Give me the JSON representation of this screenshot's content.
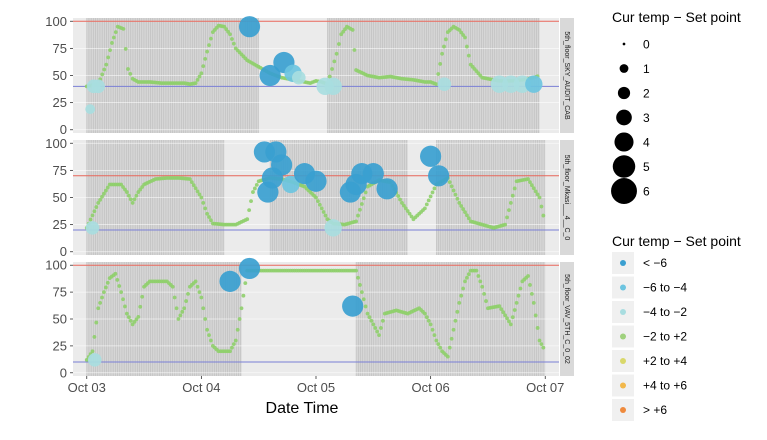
{
  "chart_data": {
    "type": "scatter",
    "xlabel": "Date Time",
    "ylabel": "",
    "x_ticks": [
      "Oct 03",
      "Oct 04",
      "Oct 05",
      "Oct 06",
      "Oct 07"
    ],
    "xlim": [
      -0.12,
      4.12
    ],
    "ylim": [
      -3,
      103
    ],
    "y_ticks": [
      0,
      25,
      50,
      75,
      100
    ],
    "grid": true,
    "legend_position": "right",
    "legends": [
      {
        "title": "Cur temp − Set point",
        "type": "size",
        "labels": [
          "0",
          "1",
          "2",
          "3",
          "4",
          "5",
          "6"
        ]
      },
      {
        "title": "Cur temp − Set point",
        "type": "color",
        "labels": [
          "< −6",
          "−6 to −4",
          "−4 to −2",
          "−2 to +2",
          "+2 to +4",
          "+4 to +6",
          "> +6"
        ],
        "colors": [
          "#3a9fd0",
          "#6cc4e0",
          "#a8dde0",
          "#9fd17d",
          "#d9d86a",
          "#f2b84b",
          "#ef8a3c"
        ]
      }
    ],
    "panels": [
      {
        "strip": "5th_floor_SKY_AUDIT_CAB",
        "upper_limit": 100,
        "lower_limit": 40,
        "occupied": [
          [
            0.0,
            1.5
          ],
          [
            2.1,
            3.95
          ]
        ],
        "trace": [
          [
            0.0,
            40
          ],
          [
            0.1,
            42
          ],
          [
            0.17,
            60
          ],
          [
            0.22,
            80
          ],
          [
            0.27,
            95
          ],
          [
            0.32,
            93
          ],
          [
            0.36,
            56
          ],
          [
            0.4,
            47
          ],
          [
            0.45,
            44
          ],
          [
            0.55,
            44
          ],
          [
            0.65,
            43
          ],
          [
            0.75,
            43
          ],
          [
            0.85,
            43
          ],
          [
            0.9,
            42
          ],
          [
            0.95,
            43
          ],
          [
            1.0,
            52
          ],
          [
            1.05,
            72
          ],
          [
            1.1,
            90
          ],
          [
            1.15,
            96
          ],
          [
            1.2,
            95
          ],
          [
            1.25,
            88
          ],
          [
            1.3,
            75
          ],
          [
            1.4,
            64
          ],
          [
            1.5,
            58
          ],
          [
            1.6,
            52
          ],
          [
            1.7,
            48
          ],
          [
            1.8,
            46
          ],
          [
            1.9,
            44
          ],
          [
            1.95,
            43
          ],
          [
            2.0,
            45
          ],
          [
            2.05,
            44
          ],
          [
            2.1,
            42
          ],
          [
            2.18,
            70
          ],
          [
            2.22,
            88
          ],
          [
            2.27,
            95
          ],
          [
            2.32,
            92
          ],
          [
            2.35,
            55
          ],
          [
            2.45,
            50
          ],
          [
            2.55,
            48
          ],
          [
            2.65,
            49
          ],
          [
            2.75,
            47
          ],
          [
            2.85,
            46
          ],
          [
            2.95,
            44
          ],
          [
            3.0,
            44
          ],
          [
            3.05,
            42
          ],
          [
            3.1,
            70
          ],
          [
            3.15,
            90
          ],
          [
            3.2,
            95
          ],
          [
            3.25,
            92
          ],
          [
            3.3,
            85
          ],
          [
            3.35,
            60
          ],
          [
            3.45,
            48
          ],
          [
            3.55,
            46
          ],
          [
            3.6,
            45
          ],
          [
            3.7,
            45
          ],
          [
            3.8,
            46
          ],
          [
            3.9,
            48
          ],
          [
            3.95,
            50
          ]
        ],
        "bubbles": [
          {
            "x": 0.03,
            "y": 19,
            "size": 1,
            "bin": "−4 to −2"
          },
          {
            "x": 0.06,
            "y": 40,
            "size": 2,
            "bin": "−4 to −2"
          },
          {
            "x": 0.1,
            "y": 40,
            "size": 2,
            "bin": "−4 to −2"
          },
          {
            "x": 1.42,
            "y": 95,
            "size": 4,
            "bin": "< −6"
          },
          {
            "x": 1.6,
            "y": 50,
            "size": 4,
            "bin": "< −6"
          },
          {
            "x": 1.72,
            "y": 62,
            "size": 4,
            "bin": "< −6"
          },
          {
            "x": 1.8,
            "y": 52,
            "size": 3,
            "bin": "−6 to −4"
          },
          {
            "x": 1.85,
            "y": 48,
            "size": 2,
            "bin": "−4 to −2"
          },
          {
            "x": 2.08,
            "y": 40,
            "size": 3,
            "bin": "−4 to −2"
          },
          {
            "x": 2.15,
            "y": 40,
            "size": 3,
            "bin": "−4 to −2"
          },
          {
            "x": 3.12,
            "y": 42,
            "size": 2,
            "bin": "−4 to −2"
          },
          {
            "x": 3.6,
            "y": 42,
            "size": 3,
            "bin": "−4 to −2"
          },
          {
            "x": 3.7,
            "y": 42,
            "size": 3,
            "bin": "−4 to −2"
          },
          {
            "x": 3.8,
            "y": 42,
            "size": 3,
            "bin": "−4 to −2"
          },
          {
            "x": 3.9,
            "y": 42,
            "size": 3,
            "bin": "−6 to −4"
          }
        ]
      },
      {
        "strip": "5th_floor_Mkasi___4__C_0",
        "upper_limit": 70,
        "lower_limit": 20,
        "occupied": [
          [
            0.0,
            1.2
          ],
          [
            1.6,
            2.8
          ],
          [
            3.05,
            4.0
          ]
        ],
        "trace": [
          [
            0.0,
            22
          ],
          [
            0.1,
            45
          ],
          [
            0.2,
            62
          ],
          [
            0.3,
            62
          ],
          [
            0.35,
            55
          ],
          [
            0.4,
            45
          ],
          [
            0.45,
            55
          ],
          [
            0.5,
            62
          ],
          [
            0.6,
            67
          ],
          [
            0.7,
            68
          ],
          [
            0.8,
            68
          ],
          [
            0.9,
            67
          ],
          [
            1.0,
            50
          ],
          [
            1.05,
            35
          ],
          [
            1.1,
            26
          ],
          [
            1.2,
            25
          ],
          [
            1.3,
            25
          ],
          [
            1.4,
            30
          ],
          [
            1.45,
            55
          ],
          [
            1.5,
            65
          ],
          [
            1.6,
            68
          ],
          [
            1.7,
            67
          ],
          [
            1.8,
            64
          ],
          [
            1.9,
            60
          ],
          [
            2.0,
            50
          ],
          [
            2.05,
            40
          ],
          [
            2.1,
            30
          ],
          [
            2.15,
            26
          ],
          [
            2.25,
            25
          ],
          [
            2.35,
            28
          ],
          [
            2.45,
            60
          ],
          [
            2.55,
            66
          ],
          [
            2.65,
            64
          ],
          [
            2.75,
            45
          ],
          [
            2.85,
            30
          ],
          [
            2.95,
            40
          ],
          [
            3.05,
            62
          ],
          [
            3.15,
            68
          ],
          [
            3.25,
            45
          ],
          [
            3.35,
            28
          ],
          [
            3.45,
            25
          ],
          [
            3.55,
            22
          ],
          [
            3.65,
            25
          ],
          [
            3.75,
            65
          ],
          [
            3.85,
            67
          ],
          [
            3.95,
            50
          ],
          [
            4.0,
            25
          ]
        ],
        "bubbles": [
          {
            "x": 0.05,
            "y": 22,
            "size": 2,
            "bin": "−4 to −2"
          },
          {
            "x": 1.55,
            "y": 92,
            "size": 4,
            "bin": "< −6"
          },
          {
            "x": 1.65,
            "y": 92,
            "size": 4,
            "bin": "< −6"
          },
          {
            "x": 1.7,
            "y": 80,
            "size": 4,
            "bin": "< −6"
          },
          {
            "x": 1.58,
            "y": 55,
            "size": 4,
            "bin": "< −6"
          },
          {
            "x": 1.62,
            "y": 68,
            "size": 4,
            "bin": "< −6"
          },
          {
            "x": 1.78,
            "y": 62,
            "size": 3,
            "bin": "−6 to −4"
          },
          {
            "x": 1.9,
            "y": 72,
            "size": 4,
            "bin": "< −6"
          },
          {
            "x": 2.0,
            "y": 65,
            "size": 4,
            "bin": "< −6"
          },
          {
            "x": 2.15,
            "y": 22,
            "size": 3,
            "bin": "−4 to −2"
          },
          {
            "x": 2.3,
            "y": 55,
            "size": 4,
            "bin": "< −6"
          },
          {
            "x": 2.35,
            "y": 62,
            "size": 4,
            "bin": "< −6"
          },
          {
            "x": 2.4,
            "y": 72,
            "size": 4,
            "bin": "< −6"
          },
          {
            "x": 2.5,
            "y": 72,
            "size": 4,
            "bin": "< −6"
          },
          {
            "x": 2.62,
            "y": 58,
            "size": 4,
            "bin": "< −6"
          },
          {
            "x": 3.0,
            "y": 88,
            "size": 4,
            "bin": "< −6"
          },
          {
            "x": 3.07,
            "y": 70,
            "size": 4,
            "bin": "< −6"
          }
        ]
      },
      {
        "strip": "5th_floor_VAV_5TH_C_0_02",
        "upper_limit": 100,
        "lower_limit": 10,
        "occupied": [
          [
            0.0,
            1.35
          ],
          [
            2.35,
            4.0
          ]
        ],
        "trace": [
          [
            0.0,
            12
          ],
          [
            0.05,
            20
          ],
          [
            0.1,
            60
          ],
          [
            0.15,
            75
          ],
          [
            0.2,
            88
          ],
          [
            0.25,
            92
          ],
          [
            0.3,
            75
          ],
          [
            0.35,
            55
          ],
          [
            0.4,
            45
          ],
          [
            0.45,
            52
          ],
          [
            0.5,
            80
          ],
          [
            0.55,
            85
          ],
          [
            0.6,
            85
          ],
          [
            0.7,
            85
          ],
          [
            0.75,
            80
          ],
          [
            0.8,
            50
          ],
          [
            0.85,
            60
          ],
          [
            0.9,
            80
          ],
          [
            0.95,
            85
          ],
          [
            1.0,
            70
          ],
          [
            1.05,
            40
          ],
          [
            1.1,
            25
          ],
          [
            1.15,
            20
          ],
          [
            1.25,
            20
          ],
          [
            1.3,
            30
          ],
          [
            1.35,
            60
          ],
          [
            1.4,
            95
          ],
          [
            2.35,
            95
          ],
          [
            2.45,
            55
          ],
          [
            2.5,
            45
          ],
          [
            2.55,
            35
          ],
          [
            2.6,
            55
          ],
          [
            2.7,
            58
          ],
          [
            2.8,
            55
          ],
          [
            2.9,
            60
          ],
          [
            2.95,
            55
          ],
          [
            3.0,
            45
          ],
          [
            3.05,
            30
          ],
          [
            3.1,
            20
          ],
          [
            3.15,
            15
          ],
          [
            3.2,
            40
          ],
          [
            3.25,
            65
          ],
          [
            3.3,
            85
          ],
          [
            3.35,
            95
          ],
          [
            3.4,
            95
          ],
          [
            3.45,
            80
          ],
          [
            3.5,
            60
          ],
          [
            3.6,
            62
          ],
          [
            3.7,
            45
          ],
          [
            3.75,
            65
          ],
          [
            3.8,
            85
          ],
          [
            3.85,
            90
          ],
          [
            3.9,
            65
          ],
          [
            3.95,
            30
          ],
          [
            4.0,
            20
          ]
        ],
        "bubbles": [
          {
            "x": 0.07,
            "y": 12,
            "size": 2,
            "bin": "−4 to −2"
          },
          {
            "x": 1.25,
            "y": 85,
            "size": 4,
            "bin": "< −6"
          },
          {
            "x": 1.42,
            "y": 97,
            "size": 4,
            "bin": "< −6"
          },
          {
            "x": 2.32,
            "y": 62,
            "size": 4,
            "bin": "< −6"
          }
        ]
      }
    ]
  }
}
